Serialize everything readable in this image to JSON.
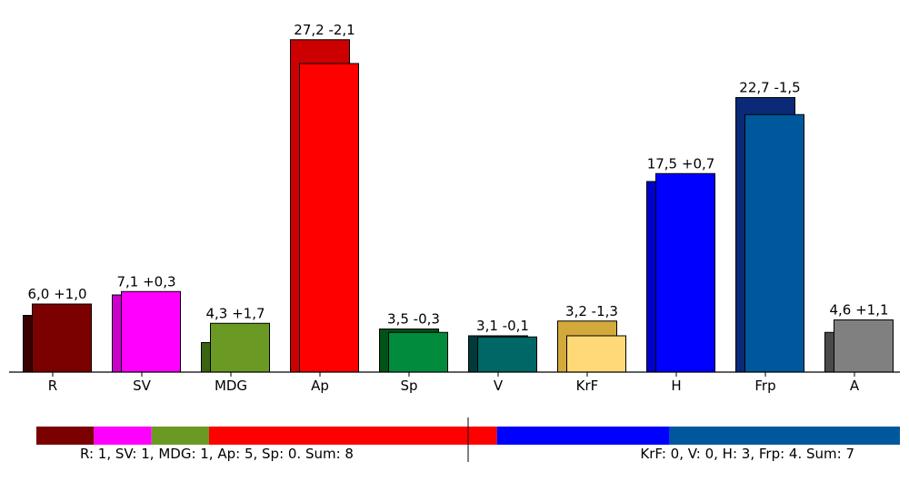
{
  "chart_data": {
    "type": "bar",
    "title": "",
    "xlabel": "",
    "ylabel": "",
    "ylim": [
      0,
      30
    ],
    "grid": false,
    "categories": [
      "R",
      "SV",
      "MDG",
      "Ap",
      "Sp",
      "V",
      "KrF",
      "H",
      "Frp",
      "A"
    ],
    "series": [
      {
        "values": [
          5.0,
          6.8,
          2.6,
          29.3,
          3.8,
          3.2,
          4.5,
          16.8,
          24.2,
          3.5
        ]
      },
      {
        "values": [
          6.0,
          7.1,
          4.3,
          27.2,
          3.5,
          3.1,
          3.2,
          17.5,
          22.7,
          4.6
        ]
      }
    ],
    "labels": [
      "6,0 +1,0",
      "7,1 +0,3",
      "4,3 +1,7",
      "27,2 -2,1",
      "3,5 -0,3",
      "3,1 -0,1",
      "3,2 -1,3",
      "17,5 +0,7",
      "22,7 -1,5",
      "4,6 +1,1"
    ],
    "colors": {
      "current": [
        "#7b0000",
        "#ff00ff",
        "#6a9a23",
        "#ff0000",
        "#008c3c",
        "#006666",
        "#ffd977",
        "#0000ff",
        "#00589c",
        "#808080"
      ],
      "previous": [
        "#3a0000",
        "#cc00cc",
        "#3b6310",
        "#cc0000",
        "#005216",
        "#003a3a",
        "#d4a93c",
        "#0000c8",
        "#0a2a78",
        "#4a4a4a"
      ]
    },
    "seat_bar": {
      "segments": [
        {
          "party": "R",
          "seats": 1,
          "color": "#7b0000"
        },
        {
          "party": "SV",
          "seats": 1,
          "color": "#ff00ff"
        },
        {
          "party": "MDG",
          "seats": 1,
          "color": "#6a9a23"
        },
        {
          "party": "Ap",
          "seats": 5,
          "color": "#ff0000"
        },
        {
          "party": "H",
          "seats": 3,
          "color": "#0000ff"
        },
        {
          "party": "Frp",
          "seats": 4,
          "color": "#00589c"
        }
      ],
      "left_text": "R: 1, SV: 1, MDG: 1, Ap: 5, Sp: 0. Sum: 8",
      "right_text": "KrF: 0, V: 0, H: 3, Frp: 4. Sum: 7"
    }
  }
}
